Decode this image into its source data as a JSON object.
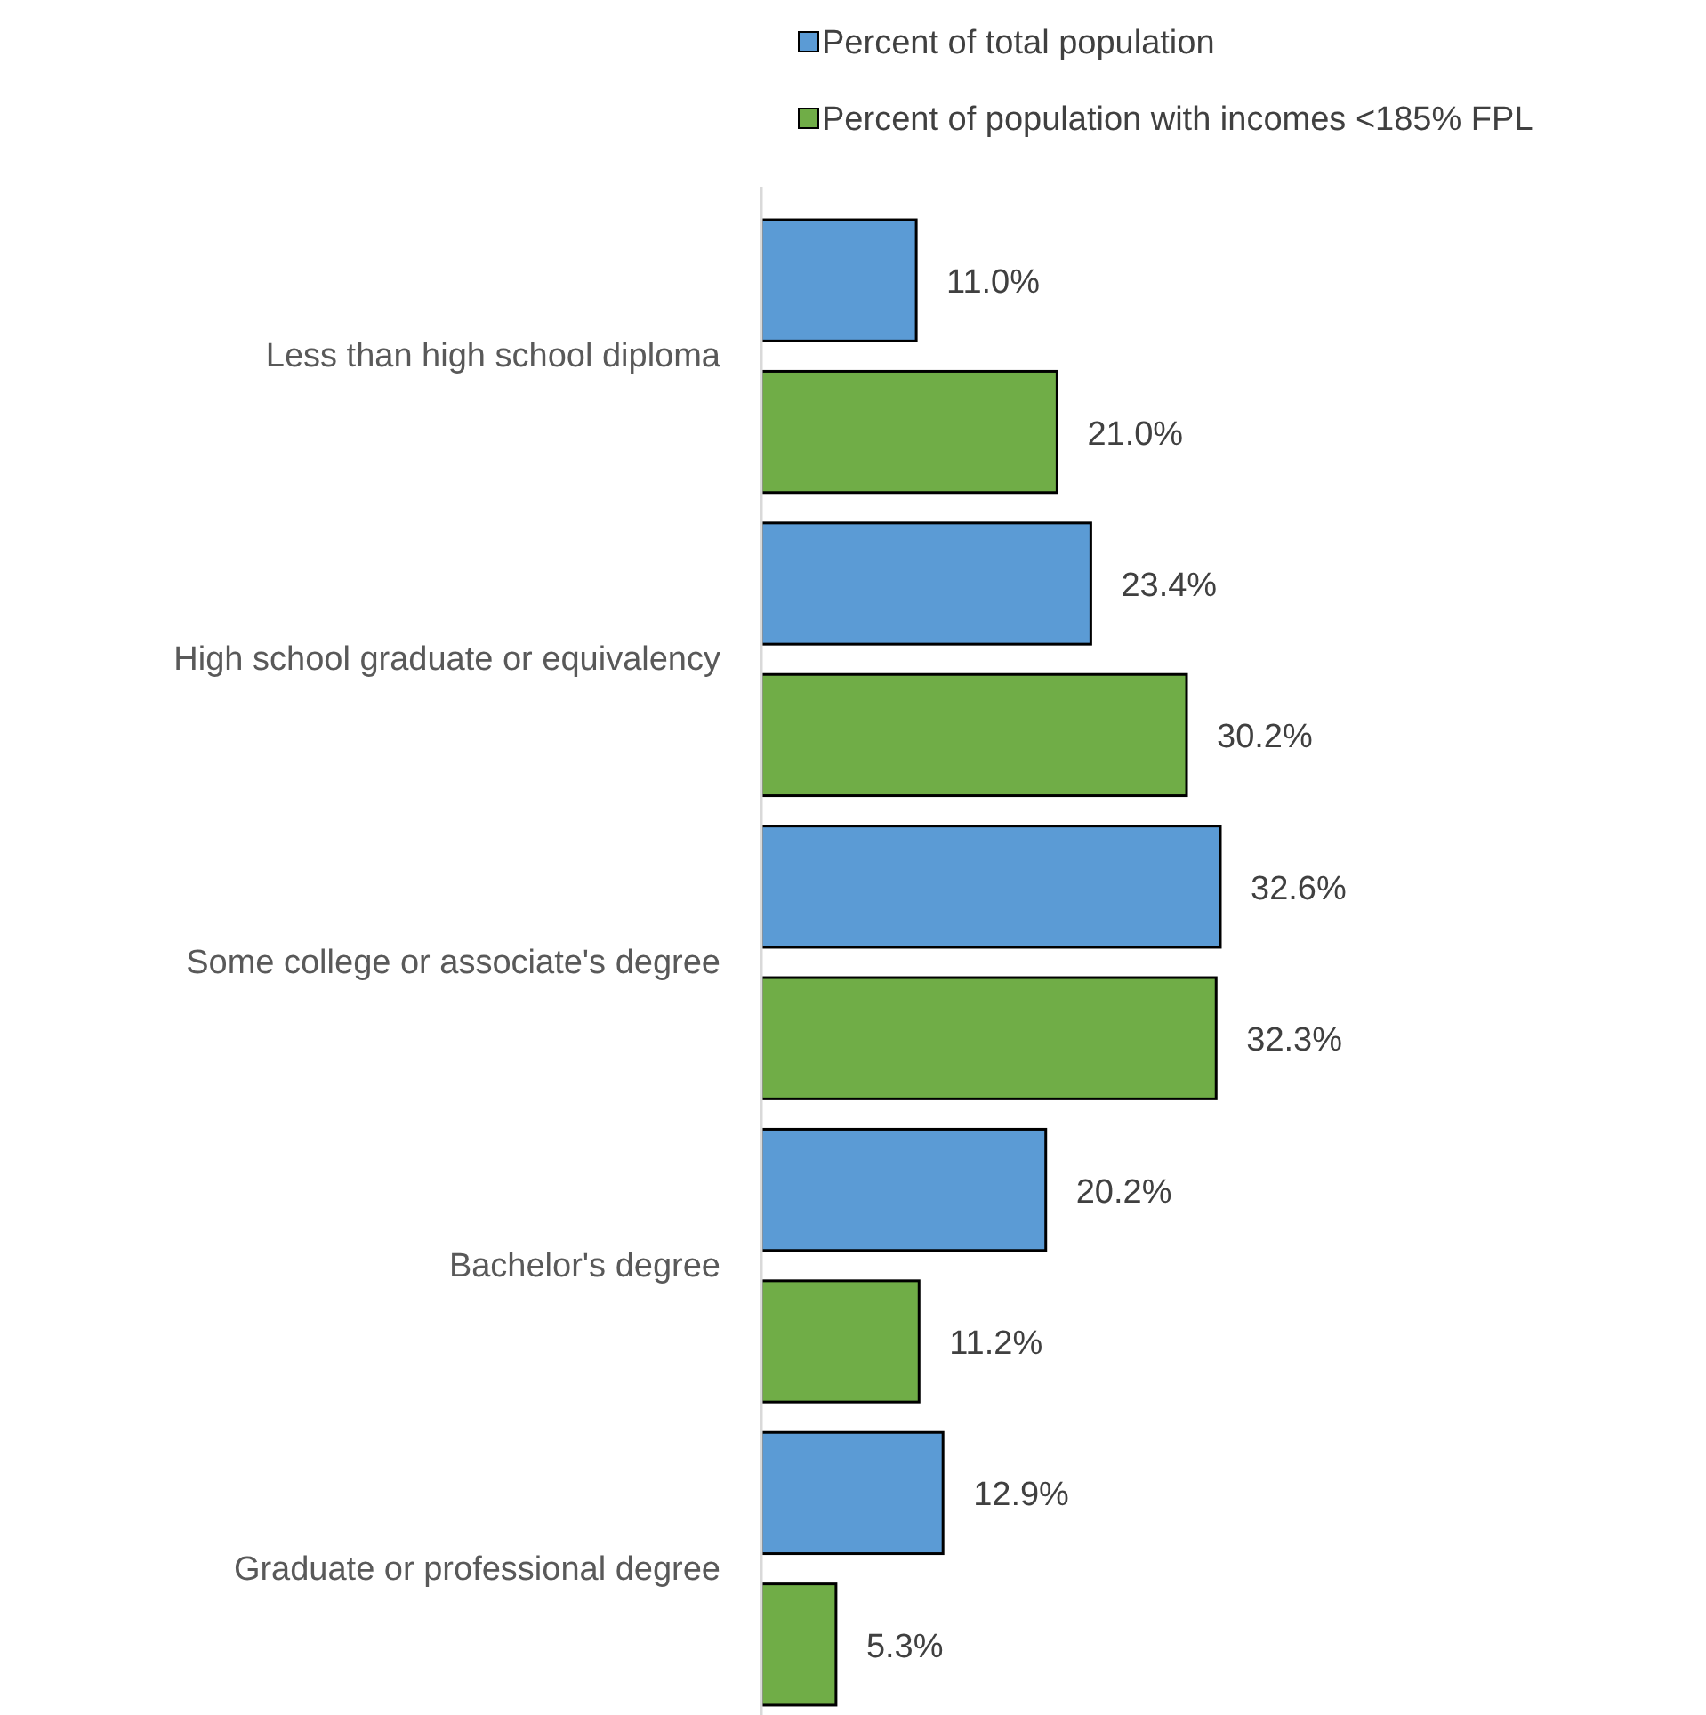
{
  "chart_data": {
    "type": "bar",
    "orientation": "horizontal",
    "categories": [
      "Less than high school diploma",
      "High school graduate or equivalency",
      "Some college or associate's degree",
      "Bachelor's degree",
      "Graduate or professional degree"
    ],
    "series": [
      {
        "name": "Percent of total population",
        "color": "#5b9bd5",
        "values": [
          11.0,
          23.4,
          32.6,
          20.2,
          12.9
        ],
        "value_labels": [
          "11.0%",
          "23.4%",
          "32.6%",
          "20.2%",
          "12.9%"
        ]
      },
      {
        "name": "Percent of population with incomes <185% FPL",
        "color": "#70ad47",
        "values": [
          21.0,
          30.2,
          32.3,
          11.2,
          5.3
        ],
        "value_labels": [
          "21.0%",
          "30.2%",
          "32.3%",
          "11.2%",
          "5.3%"
        ]
      }
    ],
    "legend": "top right"
  }
}
